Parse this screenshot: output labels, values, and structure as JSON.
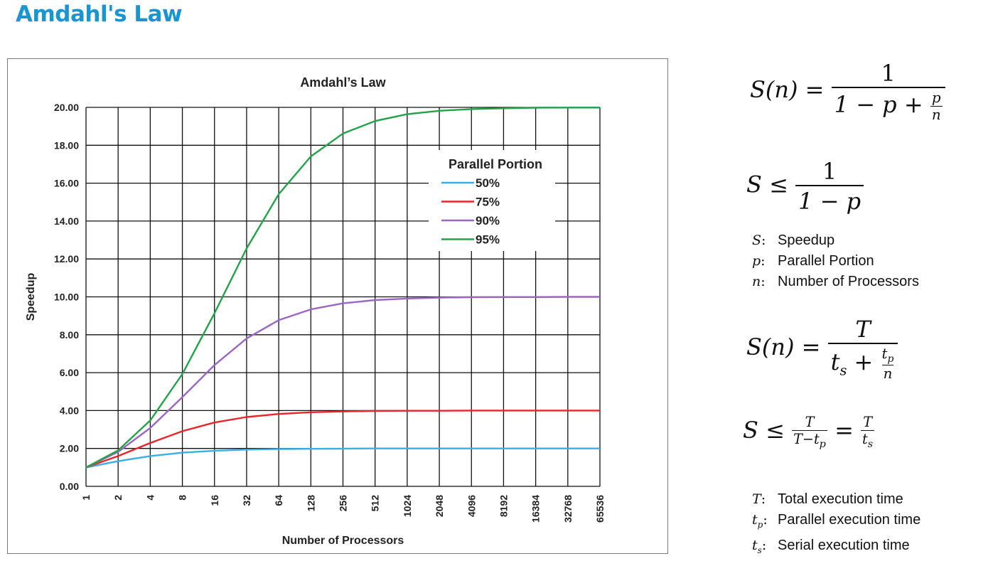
{
  "slide": {
    "title": "Amdahl's Law"
  },
  "chart_data": {
    "type": "line",
    "title": "Amdahl’s Law",
    "xlabel": "Number of Processors",
    "ylabel": "Speedup",
    "x_scale": "log2",
    "x": [
      1,
      2,
      4,
      8,
      16,
      32,
      64,
      128,
      256,
      512,
      1024,
      2048,
      4096,
      8192,
      16384,
      32768,
      65536
    ],
    "x_tick_labels": [
      "1",
      "2",
      "4",
      "8",
      "16",
      "32",
      "64",
      "128",
      "256",
      "512",
      "1024",
      "2048",
      "4096",
      "8192",
      "16384",
      "32768",
      "65536"
    ],
    "ylim": [
      0,
      20
    ],
    "y_tick_labels": [
      "0.00",
      "2.00",
      "4.00",
      "6.00",
      "8.00",
      "10.00",
      "12.00",
      "14.00",
      "16.00",
      "18.00",
      "20.00"
    ],
    "grid": true,
    "legend": {
      "title": "Parallel Portion",
      "placement": "upper-right-center"
    },
    "series": [
      {
        "name": "50%",
        "color": "#3aaee6",
        "values": [
          1.0,
          1.33,
          1.6,
          1.78,
          1.88,
          1.94,
          1.97,
          1.98,
          1.99,
          2.0,
          2.0,
          2.0,
          2.0,
          2.0,
          2.0,
          2.0,
          2.0
        ]
      },
      {
        "name": "75%",
        "color": "#e8262a",
        "values": [
          1.0,
          1.6,
          2.29,
          2.91,
          3.37,
          3.66,
          3.82,
          3.91,
          3.95,
          3.98,
          3.99,
          3.99,
          4.0,
          4.0,
          4.0,
          4.0,
          4.0
        ]
      },
      {
        "name": "90%",
        "color": "#9b67c2",
        "values": [
          1.0,
          1.82,
          3.08,
          4.71,
          6.4,
          7.8,
          8.77,
          9.34,
          9.66,
          9.83,
          9.91,
          9.96,
          9.98,
          9.99,
          9.99,
          10.0,
          10.0
        ]
      },
      {
        "name": "95%",
        "color": "#22a34a",
        "values": [
          1.0,
          1.9,
          3.48,
          5.93,
          9.14,
          12.55,
          15.42,
          17.41,
          18.62,
          19.28,
          19.64,
          19.82,
          19.91,
          19.95,
          19.98,
          19.99,
          19.99
        ]
      }
    ]
  },
  "formulas": {
    "f1": {
      "lhs": "S(n) =",
      "num": "1",
      "den_prefix": "1 − p +",
      "den_frac_num": "p",
      "den_frac_den": "n"
    },
    "f2": {
      "lhs": "S ≤",
      "num": "1",
      "den": "1 − p"
    },
    "f3": {
      "lhs": "S(n) =",
      "num": "T",
      "den_prefix": "t",
      "den_prefix_sub": "s",
      "den_plus": "+",
      "den_frac_num": "t",
      "den_frac_num_sub": "p",
      "den_frac_den": "n"
    },
    "f4": {
      "lhs": "S ≤",
      "num1": "T",
      "den1": "T−t",
      "den1_sub": "p",
      "eq": "=",
      "num2": "T",
      "den2": "t",
      "den2_sub": "s"
    }
  },
  "definitions_1": [
    {
      "symbol": "S",
      "text": "Speedup"
    },
    {
      "symbol": "p",
      "text": "Parallel Portion"
    },
    {
      "symbol": "n",
      "text": "Number of Processors"
    }
  ],
  "definitions_2": [
    {
      "symbol": "T",
      "sub": "",
      "text": "Total execution time"
    },
    {
      "symbol": "t",
      "sub": "p",
      "text": "Parallel execution time"
    },
    {
      "symbol": "t",
      "sub": "s",
      "text": "Serial execution time"
    }
  ]
}
